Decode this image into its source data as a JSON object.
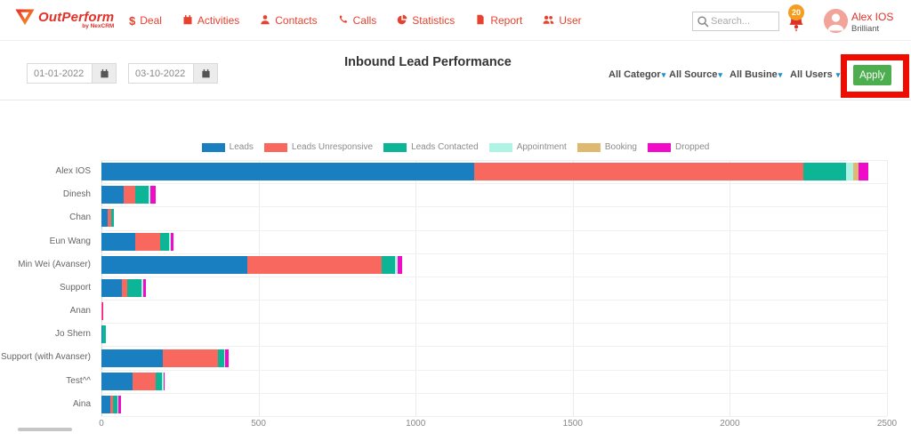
{
  "header": {
    "logo": {
      "title": "OutPerform",
      "subtitle": "by NexCRM"
    },
    "nav": [
      {
        "label": "Deal",
        "icon": "dollar-icon"
      },
      {
        "label": "Activities",
        "icon": "calendar-icon"
      },
      {
        "label": "Contacts",
        "icon": "person-icon"
      },
      {
        "label": "Calls",
        "icon": "phone-icon"
      },
      {
        "label": "Statistics",
        "icon": "pie-chart-icon"
      },
      {
        "label": "Report",
        "icon": "report-icon"
      },
      {
        "label": "User",
        "icon": "users-icon"
      }
    ],
    "search_placeholder": "Search...",
    "notification_count": "20",
    "user": {
      "name": "Alex IOS",
      "company": "Brilliant"
    }
  },
  "toolbar": {
    "date_from": "01-01-2022",
    "date_to": "03-10-2022",
    "title": "Inbound Lead Performance",
    "filters": [
      "All Categor",
      "All Source",
      "All Busine",
      "All Users"
    ],
    "apply_label": "Apply"
  },
  "colors": {
    "accent_red": "#e8412e",
    "apply_green": "#4cae4f",
    "annotation_red": "#ee0c00",
    "badge_orange": "#f59d20",
    "avatar_bg": "#f2a49b"
  },
  "chart_data": {
    "type": "bar",
    "orientation": "horizontal",
    "title": "Inbound Lead Performance",
    "stacked": true,
    "grid": true,
    "legend_position": "top",
    "xlim": [
      0,
      2500
    ],
    "x_ticks": [
      0,
      500,
      1000,
      1500,
      2000,
      2500
    ],
    "categories": [
      "Alex IOS",
      "Dinesh",
      "Chan",
      "Eun Wang",
      "Min Wei (Avanser)",
      "Support",
      "Anan",
      "Jo Shern",
      "Support (with Avanser)",
      "Test^^",
      "Aina"
    ],
    "series": [
      {
        "name": "Leads",
        "color": "#1a7fc1",
        "values": [
          1185,
          70,
          20,
          107,
          465,
          65,
          1,
          2,
          196,
          98,
          28
        ]
      },
      {
        "name": "Leads Unresponsive",
        "color": "#f8685f",
        "values": [
          1050,
          38,
          11,
          80,
          426,
          17,
          1,
          0,
          176,
          76,
          10
        ]
      },
      {
        "name": "Leads Contacted",
        "color": "#0db597",
        "values": [
          135,
          41,
          9,
          29,
          43,
          45,
          0,
          12,
          20,
          18,
          12
        ]
      },
      {
        "name": "Appointment",
        "color": "#aef3e4",
        "values": [
          22,
          8,
          0,
          4,
          8,
          6,
          0,
          0,
          3,
          5,
          4
        ]
      },
      {
        "name": "Booking",
        "color": "#dfb96f",
        "values": [
          18,
          0,
          0,
          0,
          0,
          0,
          0,
          0,
          0,
          0,
          0
        ]
      },
      {
        "name": "Dropped",
        "color": "#ef0bc8",
        "values": [
          32,
          15,
          0,
          10,
          15,
          10,
          1,
          0,
          9,
          2,
          8
        ]
      }
    ]
  }
}
